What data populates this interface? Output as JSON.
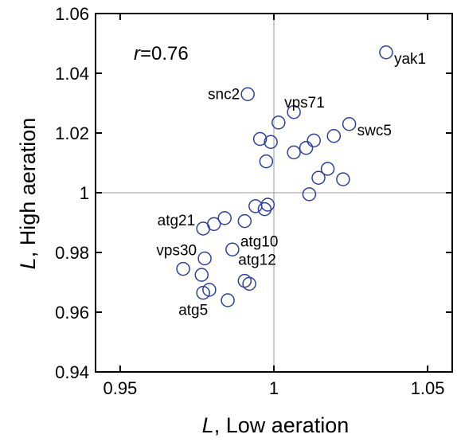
{
  "chart_data": {
    "type": "scatter",
    "xlabel": {
      "italic": "L",
      "rest": ", Low aeration"
    },
    "ylabel": {
      "italic": "L",
      "rest": ", High aeration"
    },
    "xlim": [
      0.942,
      1.058
    ],
    "ylim": [
      0.94,
      1.06
    ],
    "xticks": [
      0.95,
      1,
      1.05
    ],
    "xtick_labels": [
      "0.95",
      "1",
      "1.05"
    ],
    "yticks": [
      0.94,
      0.96,
      0.98,
      1,
      1.02,
      1.04,
      1.06
    ],
    "ytick_labels": [
      "0.94",
      "0.96",
      "0.98",
      "1",
      "1.02",
      "1.04",
      "1.06"
    ],
    "reference_lines": {
      "x": 1,
      "y": 1
    },
    "grid": false,
    "annotation": {
      "italic": "r",
      "rest": "=0.76"
    },
    "marker_color": "#2b3f9e",
    "points": [
      {
        "x": 1.0365,
        "y": 1.047,
        "label": "yak1"
      },
      {
        "x": 0.9915,
        "y": 1.033,
        "label": "snc2"
      },
      {
        "x": 1.0065,
        "y": 1.027,
        "label": "vps71"
      },
      {
        "x": 1.0245,
        "y": 1.023,
        "label": "swc5"
      },
      {
        "x": 1.0015,
        "y": 1.0235
      },
      {
        "x": 0.9955,
        "y": 1.018
      },
      {
        "x": 0.999,
        "y": 1.017
      },
      {
        "x": 1.0065,
        "y": 1.0135
      },
      {
        "x": 1.0105,
        "y": 1.015
      },
      {
        "x": 1.013,
        "y": 1.0175
      },
      {
        "x": 1.0195,
        "y": 1.019
      },
      {
        "x": 0.9975,
        "y": 1.0105
      },
      {
        "x": 1.0175,
        "y": 1.008
      },
      {
        "x": 1.0145,
        "y": 1.005
      },
      {
        "x": 1.0225,
        "y": 1.0045
      },
      {
        "x": 1.0115,
        "y": 0.9995
      },
      {
        "x": 0.998,
        "y": 0.996
      },
      {
        "x": 0.994,
        "y": 0.9955
      },
      {
        "x": 0.997,
        "y": 0.9945
      },
      {
        "x": 0.984,
        "y": 0.9915
      },
      {
        "x": 0.9905,
        "y": 0.9905
      },
      {
        "x": 0.9805,
        "y": 0.9895
      },
      {
        "x": 0.977,
        "y": 0.988,
        "label": "atg21"
      },
      {
        "x": 0.9865,
        "y": 0.981,
        "label": "atg10"
      },
      {
        "x": 0.9775,
        "y": 0.978,
        "label": "vps30"
      },
      {
        "x": 0.9705,
        "y": 0.9745
      },
      {
        "x": 0.9765,
        "y": 0.9725
      },
      {
        "x": 0.9905,
        "y": 0.9705,
        "label": "atg12"
      },
      {
        "x": 0.992,
        "y": 0.9695
      },
      {
        "x": 0.979,
        "y": 0.9675
      },
      {
        "x": 0.977,
        "y": 0.9665,
        "label": "atg5"
      },
      {
        "x": 0.985,
        "y": 0.964
      }
    ]
  }
}
